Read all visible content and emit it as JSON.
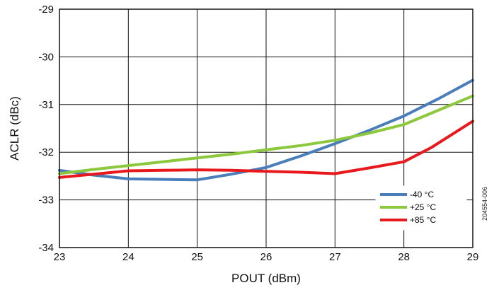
{
  "chart_data": {
    "type": "line",
    "title": "",
    "xlabel": "POUT (dBm)",
    "ylabel": "ACLR (dBc)",
    "xlim": [
      23,
      29
    ],
    "ylim": [
      -34,
      -29
    ],
    "xticks": [
      23,
      24,
      25,
      26,
      27,
      28,
      29
    ],
    "yticks": [
      -29,
      -30,
      -31,
      -32,
      -33,
      -34
    ],
    "grid": true,
    "legend_position": "bottom-right",
    "figure_id": "204554-006",
    "series": [
      {
        "name": "-40 °C",
        "color": "#4a7ebb",
        "points": [
          [
            23,
            -32.38
          ],
          [
            23.5,
            -32.48
          ],
          [
            24,
            -32.56
          ],
          [
            24.5,
            -32.57
          ],
          [
            25,
            -32.58
          ],
          [
            25.5,
            -32.46
          ],
          [
            26,
            -32.32
          ],
          [
            26.5,
            -32.08
          ],
          [
            27,
            -31.82
          ],
          [
            27.5,
            -31.54
          ],
          [
            28,
            -31.24
          ],
          [
            28.5,
            -30.88
          ],
          [
            29,
            -30.49
          ]
        ]
      },
      {
        "name": "+25 °C",
        "color": "#8cc83c",
        "points": [
          [
            23,
            -32.45
          ],
          [
            23.5,
            -32.36
          ],
          [
            24,
            -32.28
          ],
          [
            24.5,
            -32.2
          ],
          [
            25,
            -32.12
          ],
          [
            25.5,
            -32.04
          ],
          [
            26,
            -31.95
          ],
          [
            26.5,
            -31.86
          ],
          [
            27,
            -31.75
          ],
          [
            27.5,
            -31.6
          ],
          [
            28,
            -31.42
          ],
          [
            28.5,
            -31.12
          ],
          [
            29,
            -30.82
          ]
        ]
      },
      {
        "name": "+85 °C",
        "color": "#e8191c",
        "points": [
          [
            23,
            -32.53
          ],
          [
            23.5,
            -32.46
          ],
          [
            24,
            -32.39
          ],
          [
            24.5,
            -32.38
          ],
          [
            25,
            -32.37
          ],
          [
            25.5,
            -32.38
          ],
          [
            26,
            -32.4
          ],
          [
            26.5,
            -32.42
          ],
          [
            27,
            -32.45
          ],
          [
            27.5,
            -32.33
          ],
          [
            28,
            -32.2
          ],
          [
            28.4,
            -31.9
          ],
          [
            29,
            -31.35
          ]
        ]
      }
    ]
  }
}
